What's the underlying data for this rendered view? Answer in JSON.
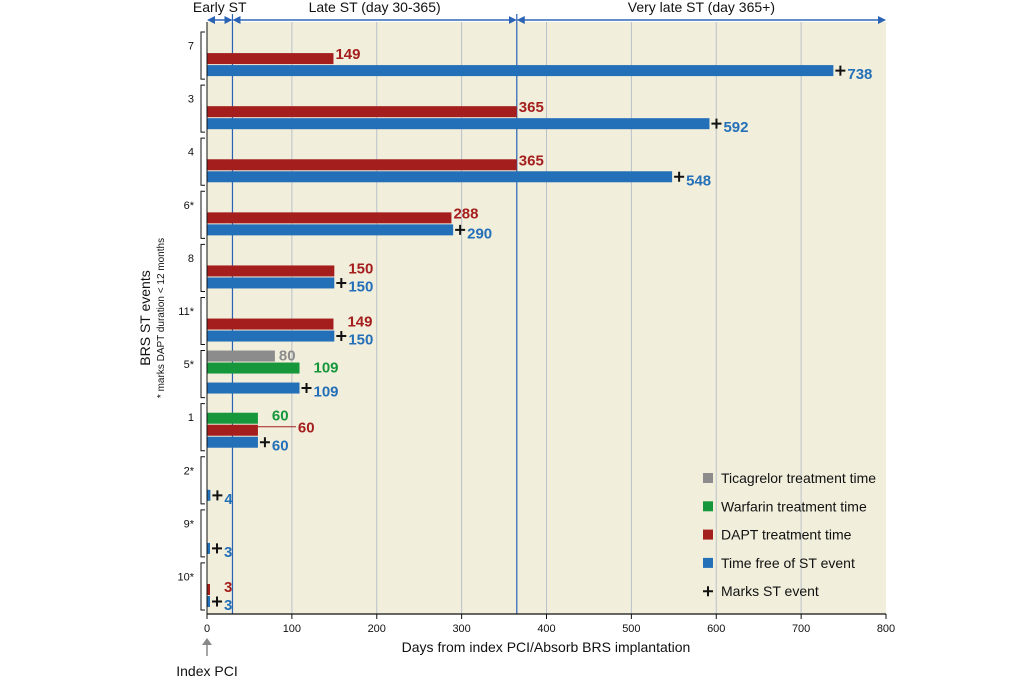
{
  "chart_data": {
    "type": "bar",
    "orientation": "horizontal",
    "xlabel": "Days from index PCI/Absorb BRS implantation",
    "ylabel": "BRS ST events",
    "ylabel_note": "* marks DAPT duration < 12 months",
    "xlim": [
      0,
      800
    ],
    "xticks": [
      0,
      100,
      200,
      300,
      400,
      500,
      600,
      700,
      800
    ],
    "grid": true,
    "index_marker": "Index PCI",
    "phases": [
      {
        "label": "Early ST",
        "start": 0,
        "end": 30
      },
      {
        "label": "Late ST (day 30-365)",
        "start": 30,
        "end": 365
      },
      {
        "label": "Very late ST (day 365+)",
        "start": 365,
        "end": 800
      }
    ],
    "colors": {
      "Ticagrelor": "#8c8c8c",
      "Warfarin": "#16973c",
      "DAPT": "#a51e1e",
      "Free": "#2470b8",
      "background": "#f1eedb",
      "phase": "#2a62b4"
    },
    "legend": [
      {
        "key": "Ticagrelor",
        "label": "Ticagrelor treatment time"
      },
      {
        "key": "Warfarin",
        "label": "Warfarin treatment time"
      },
      {
        "key": "DAPT",
        "label": "DAPT treatment time"
      },
      {
        "key": "Free",
        "label": "Time free of ST event"
      },
      {
        "key": "Marker",
        "label": "Marks ST event",
        "symbol": "+"
      }
    ],
    "cases": [
      {
        "label": "7",
        "bars": [
          {
            "series": "DAPT",
            "value": 149
          },
          {
            "series": "Free",
            "value": 738,
            "event": true
          }
        ]
      },
      {
        "label": "3",
        "bars": [
          {
            "series": "DAPT",
            "value": 365
          },
          {
            "series": "Free",
            "value": 592,
            "event": true
          }
        ]
      },
      {
        "label": "4",
        "bars": [
          {
            "series": "DAPT",
            "value": 365
          },
          {
            "series": "Free",
            "value": 548,
            "event": true
          }
        ]
      },
      {
        "label": "6*",
        "bars": [
          {
            "series": "DAPT",
            "value": 288
          },
          {
            "series": "Free",
            "value": 290,
            "event": true
          }
        ]
      },
      {
        "label": "8",
        "bars": [
          {
            "series": "DAPT",
            "value": 150
          },
          {
            "series": "Free",
            "value": 150,
            "event": true
          }
        ]
      },
      {
        "label": "11*",
        "bars": [
          {
            "series": "DAPT",
            "value": 149
          },
          {
            "series": "Free",
            "value": 150,
            "event": true
          }
        ]
      },
      {
        "label": "5*",
        "bars": [
          {
            "series": "Ticagrelor",
            "value": 80
          },
          {
            "series": "Warfarin",
            "value": 109
          },
          {
            "series": "Free",
            "value": 109,
            "event": true
          }
        ]
      },
      {
        "label": "1",
        "bars": [
          {
            "series": "Warfarin",
            "value": 60
          },
          {
            "series": "DAPT",
            "value": 60
          },
          {
            "series": "Free",
            "value": 60,
            "event": true
          }
        ]
      },
      {
        "label": "2*",
        "bars": [
          {
            "series": "Free",
            "value": 4,
            "event": true
          }
        ]
      },
      {
        "label": "9*",
        "bars": [
          {
            "series": "Free",
            "value": 3,
            "event": true
          }
        ]
      },
      {
        "label": "10*",
        "bars": [
          {
            "series": "DAPT",
            "value": 3
          },
          {
            "series": "Free",
            "value": 3,
            "event": true
          }
        ]
      }
    ]
  }
}
